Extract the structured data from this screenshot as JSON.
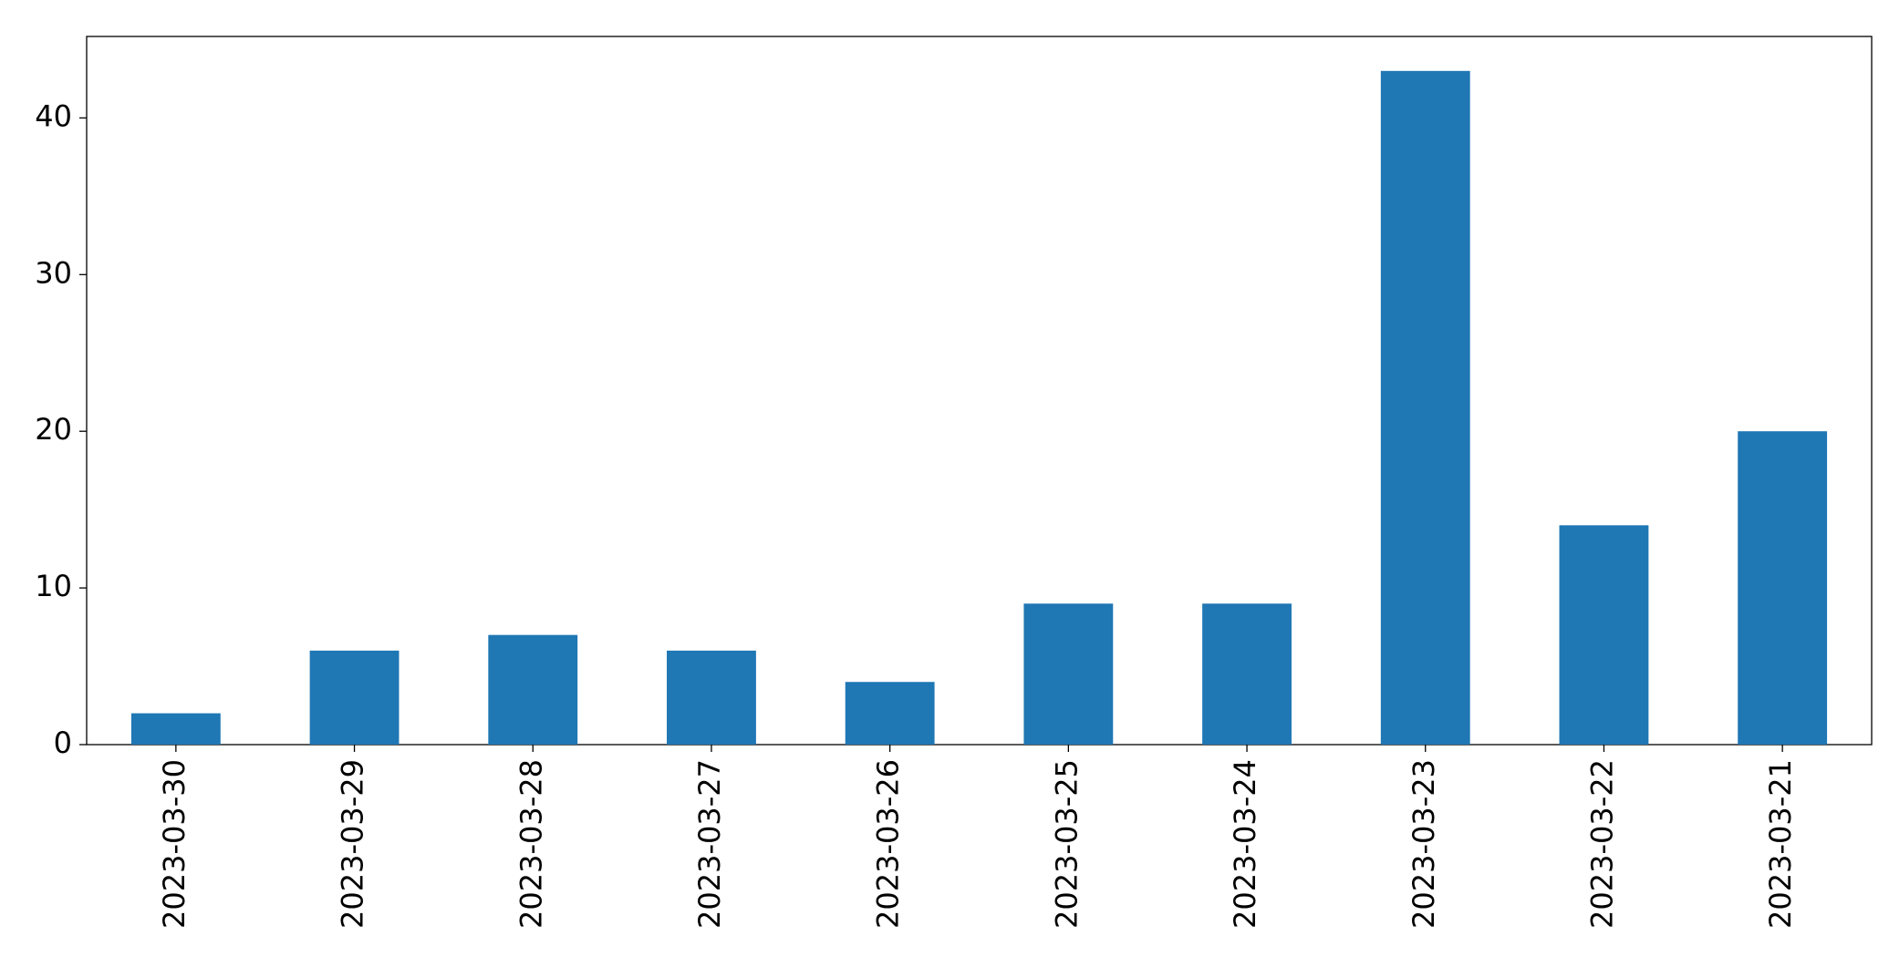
{
  "chart_data": {
    "type": "bar",
    "categories": [
      "2023-03-30",
      "2023-03-29",
      "2023-03-28",
      "2023-03-27",
      "2023-03-26",
      "2023-03-25",
      "2023-03-24",
      "2023-03-23",
      "2023-03-22",
      "2023-03-21"
    ],
    "values": [
      2,
      6,
      7,
      6,
      4,
      9,
      9,
      43,
      14,
      20
    ],
    "color": "#1f77b4",
    "ylim": [
      0,
      45.2
    ],
    "yticks": [
      0,
      10,
      20,
      30,
      40
    ],
    "grid": false
  }
}
